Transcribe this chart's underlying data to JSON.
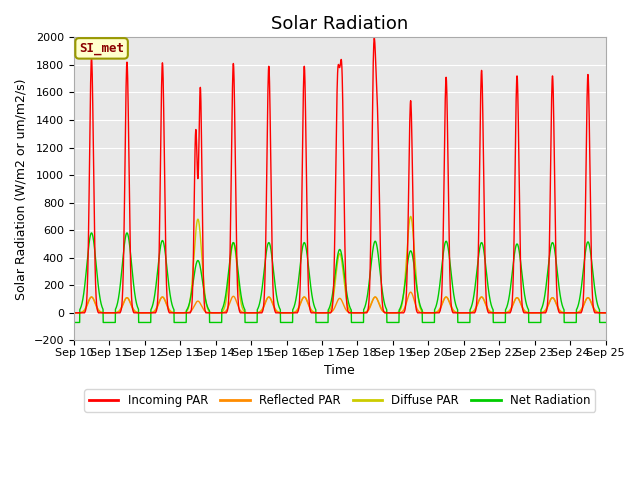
{
  "title": "Solar Radiation",
  "xlabel": "Time",
  "ylabel": "Solar Radiation (W/m2 or um/m2/s)",
  "ylim": [
    -200,
    2000
  ],
  "xlim": [
    0,
    15
  ],
  "yticks": [
    -200,
    0,
    200,
    400,
    600,
    800,
    1000,
    1200,
    1400,
    1600,
    1800,
    2000
  ],
  "xtick_labels": [
    "Sep 10",
    "Sep 11",
    "Sep 12",
    "Sep 13",
    "Sep 14",
    "Sep 15",
    "Sep 16",
    "Sep 17",
    "Sep 18",
    "Sep 19",
    "Sep 20",
    "Sep 21",
    "Sep 22",
    "Sep 23",
    "Sep 24",
    "Sep 25"
  ],
  "annotation_text": "SI_met",
  "colors": {
    "incoming": "#ff0000",
    "reflected": "#ff8c00",
    "diffuse": "#cccc00",
    "net": "#00cc00"
  },
  "legend_labels": [
    "Incoming PAR",
    "Reflected PAR",
    "Diffuse PAR",
    "Net Radiation"
  ],
  "background_color": "#e8e8e8",
  "figure_background": "#ffffff",
  "n_days": 15,
  "daily_peaks_incoming": [
    1850,
    1820,
    1815,
    1620,
    1810,
    1790,
    1790,
    1640,
    1790,
    1540,
    1710,
    1760,
    1720,
    1720,
    1730
  ],
  "daily_peaks_incoming2": [
    0,
    0,
    0,
    1310,
    0,
    0,
    0,
    1590,
    1200,
    0,
    0,
    0,
    0,
    0,
    0
  ],
  "daily_peaks_net": [
    580,
    580,
    525,
    380,
    510,
    510,
    510,
    460,
    520,
    450,
    520,
    510,
    500,
    510,
    515
  ],
  "daily_peaks_reflected": [
    115,
    110,
    115,
    85,
    120,
    115,
    115,
    105,
    115,
    150,
    115,
    115,
    110,
    110,
    110
  ],
  "daily_peaks_diffuse": [
    115,
    110,
    115,
    680,
    510,
    115,
    115,
    430,
    115,
    700,
    115,
    115,
    110,
    110,
    110
  ],
  "night_net": -70,
  "grid_color": "#ffffff",
  "title_fontsize": 13,
  "label_fontsize": 9,
  "tick_fontsize": 8
}
